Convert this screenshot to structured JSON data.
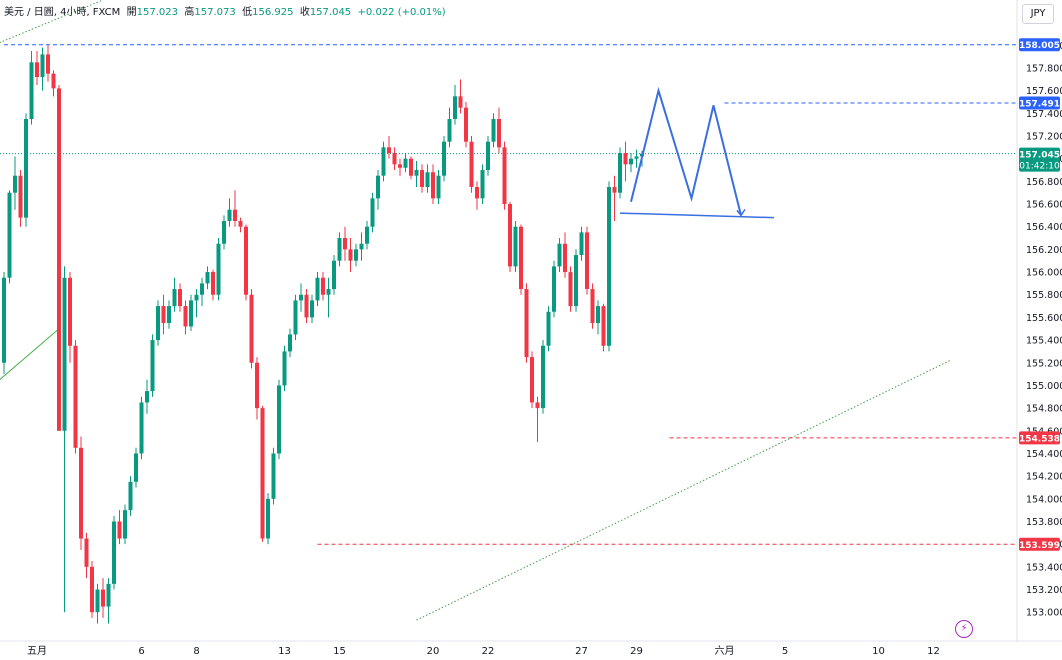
{
  "header": {
    "symbol": "美元 / 日圓, 4小時, FXCM",
    "open_label": "開",
    "open": "157.023",
    "high_label": "高",
    "high": "157.073",
    "low_label": "低",
    "low": "156.925",
    "close_label": "收",
    "close": "157.045",
    "change": "+0.022 (+0.01%)"
  },
  "currency_button": "JPY",
  "countdown": "01:42:10",
  "colors": {
    "up": "#089981",
    "down": "#f23645",
    "blue": "#2962ff",
    "pattern": "#3a6fe0",
    "bolt": "#a52bbd"
  },
  "chart_data": {
    "type": "candlestick",
    "title": "美元 / 日圓, 4小時, FXCM",
    "ylim": [
      152.85,
      158.15
    ],
    "y_ticks": [
      "153.000",
      "153.200",
      "153.400",
      "153.600",
      "153.800",
      "154.000",
      "154.200",
      "154.400",
      "154.600",
      "154.800",
      "155.000",
      "155.200",
      "155.400",
      "155.600",
      "155.800",
      "156.000",
      "156.200",
      "156.400",
      "156.600",
      "156.800",
      "157.000",
      "157.200",
      "157.400",
      "157.600",
      "157.800",
      "158.000"
    ],
    "x_ticks": [
      {
        "label": "五月",
        "index": 6
      },
      {
        "label": "6",
        "index": 25
      },
      {
        "label": "8",
        "index": 35
      },
      {
        "label": "13",
        "index": 51
      },
      {
        "label": "15",
        "index": 61
      },
      {
        "label": "20",
        "index": 78
      },
      {
        "label": "22",
        "index": 88
      },
      {
        "label": "27",
        "index": 105
      },
      {
        "label": "29",
        "index": 115
      },
      {
        "label": "六月",
        "index": 131
      },
      {
        "label": "5",
        "index": 142
      },
      {
        "label": "10",
        "index": 159
      },
      {
        "label": "12",
        "index": 169
      }
    ],
    "price_labels": [
      {
        "value": 158.005,
        "text": "158.005",
        "kind": "level"
      },
      {
        "value": 157.491,
        "text": "157.491",
        "kind": "pattern"
      },
      {
        "value": 157.045,
        "text": "157.045",
        "kind": "last"
      },
      {
        "value": 154.538,
        "text": "154.538",
        "kind": "support"
      },
      {
        "value": 153.599,
        "text": "153.599",
        "kind": "support"
      }
    ],
    "levels": [
      {
        "value": 158.005,
        "style": "dashed-blue",
        "from_index": 0
      },
      {
        "value": 157.491,
        "style": "dashed-blue",
        "from_index": 131
      },
      {
        "value": 154.538,
        "style": "dashed-red",
        "from_index": 121
      },
      {
        "value": 153.599,
        "style": "dashed-red",
        "from_index": 57
      }
    ],
    "pattern": {
      "zigzag": [
        [
          114,
          156.62
        ],
        [
          119,
          157.6
        ],
        [
          125,
          156.65
        ],
        [
          129,
          157.47
        ],
        [
          134,
          156.5
        ]
      ],
      "neckline": [
        [
          112,
          156.52
        ],
        [
          140,
          156.48
        ]
      ]
    },
    "trendlines": [
      {
        "points": [
          [
            -2,
            155.0
          ],
          [
            10,
            155.5
          ]
        ],
        "style": "solid-green"
      },
      {
        "points": [
          [
            75,
            152.93
          ],
          [
            172,
            155.22
          ]
        ],
        "style": "dotted-green"
      },
      {
        "points": [
          [
            -2,
            158.0
          ],
          [
            18,
            158.4
          ]
        ],
        "style": "dotted-green"
      }
    ],
    "candles": [
      [
        155.2,
        156.0,
        155.1,
        155.95
      ],
      [
        155.95,
        156.72,
        155.9,
        156.7
      ],
      [
        156.7,
        157.02,
        156.55,
        156.85
      ],
      [
        156.85,
        156.9,
        156.4,
        156.48
      ],
      [
        156.48,
        157.4,
        156.4,
        157.35
      ],
      [
        157.35,
        157.95,
        157.3,
        157.85
      ],
      [
        157.85,
        157.95,
        157.65,
        157.72
      ],
      [
        157.72,
        157.98,
        157.6,
        157.92
      ],
      [
        157.92,
        158.0,
        157.68,
        157.75
      ],
      [
        157.75,
        157.78,
        157.55,
        157.62
      ],
      [
        157.62,
        157.65,
        154.6,
        154.6
      ],
      [
        154.6,
        156.05,
        153.0,
        155.95
      ],
      [
        155.95,
        156.0,
        155.2,
        155.35
      ],
      [
        155.35,
        155.4,
        154.4,
        154.45
      ],
      [
        154.45,
        154.55,
        153.55,
        153.65
      ],
      [
        153.65,
        153.7,
        153.3,
        153.4
      ],
      [
        153.4,
        153.45,
        152.95,
        153.0
      ],
      [
        153.0,
        153.25,
        152.9,
        153.2
      ],
      [
        153.2,
        153.3,
        152.95,
        153.05
      ],
      [
        153.05,
        153.3,
        152.9,
        153.25
      ],
      [
        153.25,
        153.85,
        153.2,
        153.8
      ],
      [
        153.8,
        153.9,
        153.6,
        153.65
      ],
      [
        153.65,
        153.95,
        153.6,
        153.9
      ],
      [
        153.9,
        154.2,
        153.85,
        154.15
      ],
      [
        154.15,
        154.45,
        154.1,
        154.4
      ],
      [
        154.4,
        154.9,
        154.35,
        154.85
      ],
      [
        154.85,
        155.05,
        154.75,
        154.95
      ],
      [
        154.95,
        155.45,
        154.9,
        155.4
      ],
      [
        155.4,
        155.75,
        155.35,
        155.7
      ],
      [
        155.7,
        155.8,
        155.45,
        155.55
      ],
      [
        155.55,
        155.75,
        155.5,
        155.7
      ],
      [
        155.7,
        155.95,
        155.65,
        155.85
      ],
      [
        155.85,
        155.9,
        155.65,
        155.7
      ],
      [
        155.7,
        155.75,
        155.45,
        155.52
      ],
      [
        155.52,
        155.8,
        155.48,
        155.75
      ],
      [
        155.75,
        155.85,
        155.6,
        155.8
      ],
      [
        155.8,
        155.95,
        155.7,
        155.9
      ],
      [
        155.9,
        156.05,
        155.85,
        156.0
      ],
      [
        156.0,
        156.02,
        155.75,
        155.8
      ],
      [
        155.8,
        156.3,
        155.75,
        156.25
      ],
      [
        156.25,
        156.5,
        156.2,
        156.45
      ],
      [
        156.45,
        156.65,
        156.4,
        156.55
      ],
      [
        156.55,
        156.72,
        156.4,
        156.45
      ],
      [
        156.45,
        156.48,
        156.35,
        156.4
      ],
      [
        156.4,
        156.42,
        155.75,
        155.8
      ],
      [
        155.8,
        155.85,
        155.15,
        155.2
      ],
      [
        155.2,
        155.25,
        154.7,
        154.8
      ],
      [
        154.8,
        154.82,
        153.62,
        153.65
      ],
      [
        153.65,
        154.05,
        153.6,
        154.0
      ],
      [
        154.0,
        154.45,
        153.95,
        154.4
      ],
      [
        154.4,
        155.05,
        154.35,
        155.0
      ],
      [
        155.0,
        155.35,
        154.95,
        155.3
      ],
      [
        155.3,
        155.5,
        155.25,
        155.45
      ],
      [
        155.45,
        155.8,
        155.4,
        155.75
      ],
      [
        155.75,
        155.9,
        155.65,
        155.8
      ],
      [
        155.8,
        155.85,
        155.55,
        155.6
      ],
      [
        155.6,
        155.8,
        155.55,
        155.75
      ],
      [
        155.75,
        156.0,
        155.7,
        155.95
      ],
      [
        155.95,
        156.0,
        155.75,
        155.8
      ],
      [
        155.8,
        155.95,
        155.6,
        155.85
      ],
      [
        155.85,
        156.15,
        155.8,
        156.1
      ],
      [
        156.1,
        156.35,
        156.05,
        156.3
      ],
      [
        156.3,
        156.4,
        156.1,
        156.2
      ],
      [
        156.2,
        156.3,
        156.0,
        156.1
      ],
      [
        156.1,
        156.25,
        156.05,
        156.2
      ],
      [
        156.2,
        156.35,
        156.1,
        156.25
      ],
      [
        156.25,
        156.45,
        156.2,
        156.4
      ],
      [
        156.4,
        156.7,
        156.35,
        156.65
      ],
      [
        156.65,
        156.9,
        156.55,
        156.85
      ],
      [
        156.85,
        157.15,
        156.8,
        157.1
      ],
      [
        157.1,
        157.2,
        157.0,
        157.05
      ],
      [
        157.05,
        157.1,
        156.9,
        156.95
      ],
      [
        156.95,
        157.0,
        156.85,
        156.92
      ],
      [
        156.92,
        157.05,
        156.88,
        157.0
      ],
      [
        157.0,
        157.02,
        156.82,
        156.85
      ],
      [
        156.85,
        156.98,
        156.75,
        156.9
      ],
      [
        156.9,
        156.95,
        156.7,
        156.75
      ],
      [
        156.75,
        156.95,
        156.7,
        156.88
      ],
      [
        156.88,
        156.95,
        156.6,
        156.65
      ],
      [
        156.65,
        156.9,
        156.6,
        156.85
      ],
      [
        156.85,
        157.2,
        156.8,
        157.15
      ],
      [
        157.15,
        157.45,
        157.1,
        157.35
      ],
      [
        157.35,
        157.65,
        157.3,
        157.55
      ],
      [
        157.55,
        157.7,
        157.4,
        157.45
      ],
      [
        157.45,
        157.5,
        157.1,
        157.15
      ],
      [
        157.15,
        157.2,
        156.7,
        156.75
      ],
      [
        156.75,
        156.8,
        156.55,
        156.65
      ],
      [
        156.65,
        156.95,
        156.6,
        156.9
      ],
      [
        156.9,
        157.2,
        156.85,
        157.15
      ],
      [
        157.15,
        157.4,
        157.1,
        157.35
      ],
      [
        157.35,
        157.45,
        157.05,
        157.1
      ],
      [
        157.1,
        157.15,
        156.55,
        156.6
      ],
      [
        156.6,
        156.62,
        156.0,
        156.05
      ],
      [
        156.05,
        156.45,
        156.0,
        156.4
      ],
      [
        156.4,
        156.42,
        155.8,
        155.85
      ],
      [
        155.85,
        155.9,
        155.2,
        155.25
      ],
      [
        155.25,
        155.3,
        154.8,
        154.85
      ],
      [
        154.85,
        154.9,
        154.5,
        154.8
      ],
      [
        154.8,
        155.4,
        154.75,
        155.35
      ],
      [
        155.35,
        155.7,
        155.3,
        155.65
      ],
      [
        155.65,
        156.1,
        155.6,
        156.05
      ],
      [
        156.05,
        156.3,
        156.0,
        156.25
      ],
      [
        156.25,
        156.35,
        155.95,
        156.0
      ],
      [
        156.0,
        156.05,
        155.65,
        155.7
      ],
      [
        155.7,
        156.2,
        155.65,
        156.15
      ],
      [
        156.15,
        156.4,
        156.1,
        156.35
      ],
      [
        156.35,
        156.4,
        155.8,
        155.85
      ],
      [
        155.85,
        155.9,
        155.5,
        155.55
      ],
      [
        155.55,
        155.75,
        155.45,
        155.7
      ],
      [
        155.7,
        155.72,
        155.3,
        155.35
      ],
      [
        155.35,
        156.8,
        155.3,
        156.75
      ],
      [
        156.75,
        156.85,
        156.45,
        156.7
      ],
      [
        156.7,
        157.1,
        156.65,
        157.05
      ],
      [
        157.05,
        157.15,
        156.8,
        156.95
      ],
      [
        156.95,
        157.05,
        156.88,
        157.0
      ],
      [
        157.0,
        157.08,
        156.92,
        157.02
      ],
      [
        157.02,
        157.07,
        156.93,
        157.045
      ]
    ]
  }
}
